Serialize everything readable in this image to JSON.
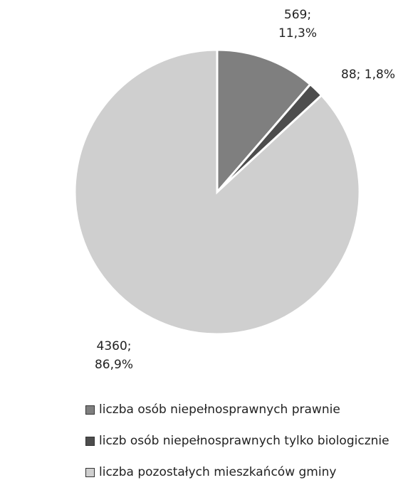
{
  "chart_data": {
    "type": "pie",
    "categories": [
      "liczba osób niepełnosprawnych prawnie",
      "liczb osób niepełnosprawnych tylko biologicznie",
      "liczba pozostałych mieszkańców gminy"
    ],
    "values": [
      569,
      88,
      4360
    ],
    "value_labels": [
      "569; 11,3%",
      "88; 1,8%",
      "4360; 86,9%"
    ],
    "colors": [
      "#7f7f7f",
      "#4d4d4d",
      "#cfcfcf"
    ],
    "legend": "bottom"
  }
}
